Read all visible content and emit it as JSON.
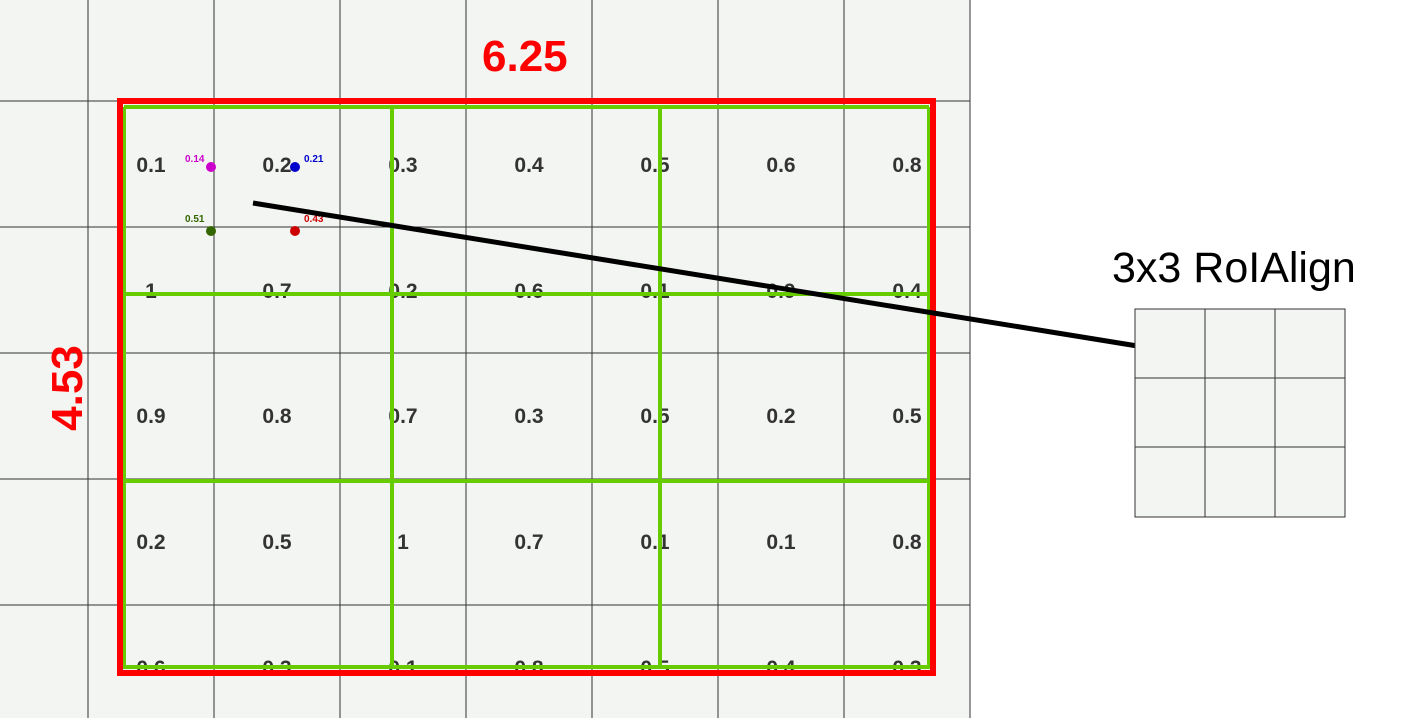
{
  "feature_map": {
    "values": [
      [
        "0.1",
        "0.2",
        "0.3",
        "0.4",
        "0.5",
        "0.6",
        "0.8"
      ],
      [
        "1",
        "0.7",
        "0.2",
        "0.6",
        "0.1",
        "0.9",
        "0.4"
      ],
      [
        "0.9",
        "0.8",
        "0.7",
        "0.3",
        "0.5",
        "0.2",
        "0.5"
      ],
      [
        "0.2",
        "0.5",
        "1",
        "0.7",
        "0.1",
        "0.1",
        "0.8"
      ],
      [
        "0.6",
        "0.3",
        "0.1",
        "0.8",
        "0.5",
        "0.4",
        "0.3"
      ]
    ]
  },
  "roi": {
    "width_label": "6.25",
    "height_label": "4.53",
    "color": "#ff0000",
    "bin_color": "#66cc00"
  },
  "sample_points": [
    {
      "label": "0.14",
      "color": "#cc00cc"
    },
    {
      "label": "0.21",
      "color": "#0000cc"
    },
    {
      "label": "0.51",
      "color": "#336600"
    },
    {
      "label": "0.43",
      "color": "#cc0000"
    }
  ],
  "output": {
    "title": "3x3 RoIAlign"
  }
}
